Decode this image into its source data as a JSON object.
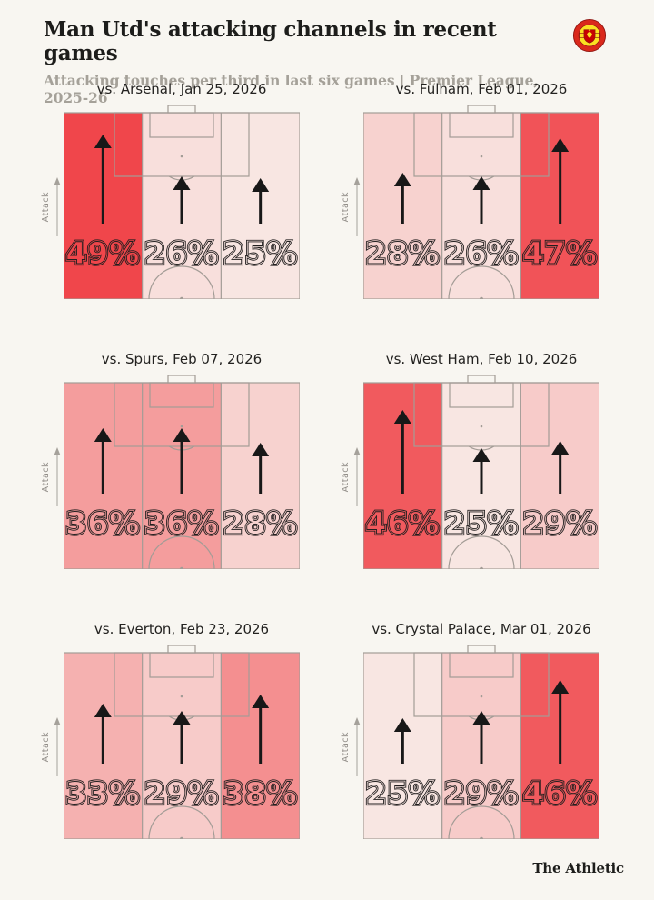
{
  "header": {
    "title": "Man Utd's attacking channels in recent games",
    "subtitle": "Attacking touches per third in last six games | Premier League, 2025-26",
    "badge": "manchester-united-crest"
  },
  "axis": {
    "attack_label": "Attack"
  },
  "footer": {
    "brand": "The Athletic"
  },
  "colors": {
    "background": "#f8f6f1",
    "pitch_line": "#a39c96",
    "arrow": "#181818",
    "label_outline": "#221f1f",
    "text_dark": "#1d1d1b",
    "text_muted": "#a5a199",
    "axis_grey": "#a5a19b",
    "scale_min_color": "#f8e6e2",
    "scale_max_color": "#f0464b",
    "scale_min_pct": 25,
    "scale_max_pct": 49
  },
  "chart_data": {
    "type": "heatmap",
    "title": "Man Utd's attacking channels in recent games",
    "subtitle": "Attacking touches per third in last six games | Premier League, 2025-26",
    "unit": "percent of attacking touches per vertical third",
    "channels": [
      "left",
      "centre",
      "right"
    ],
    "attack_direction": "up",
    "matches": [
      {
        "label": "vs. Arsenal, Jan 25, 2026",
        "values": [
          49,
          26,
          25
        ]
      },
      {
        "label": "vs. Fulham, Feb 01, 2026",
        "values": [
          28,
          26,
          47
        ]
      },
      {
        "label": "vs. Spurs, Feb 07, 2026",
        "values": [
          36,
          36,
          28
        ]
      },
      {
        "label": "vs. West Ham, Feb 10, 2026",
        "values": [
          46,
          25,
          29
        ]
      },
      {
        "label": "vs. Everton, Feb 23, 2026",
        "values": [
          33,
          29,
          38
        ]
      },
      {
        "label": "vs. Crystal Palace, Mar 01, 2026",
        "values": [
          25,
          29,
          46
        ]
      }
    ]
  }
}
